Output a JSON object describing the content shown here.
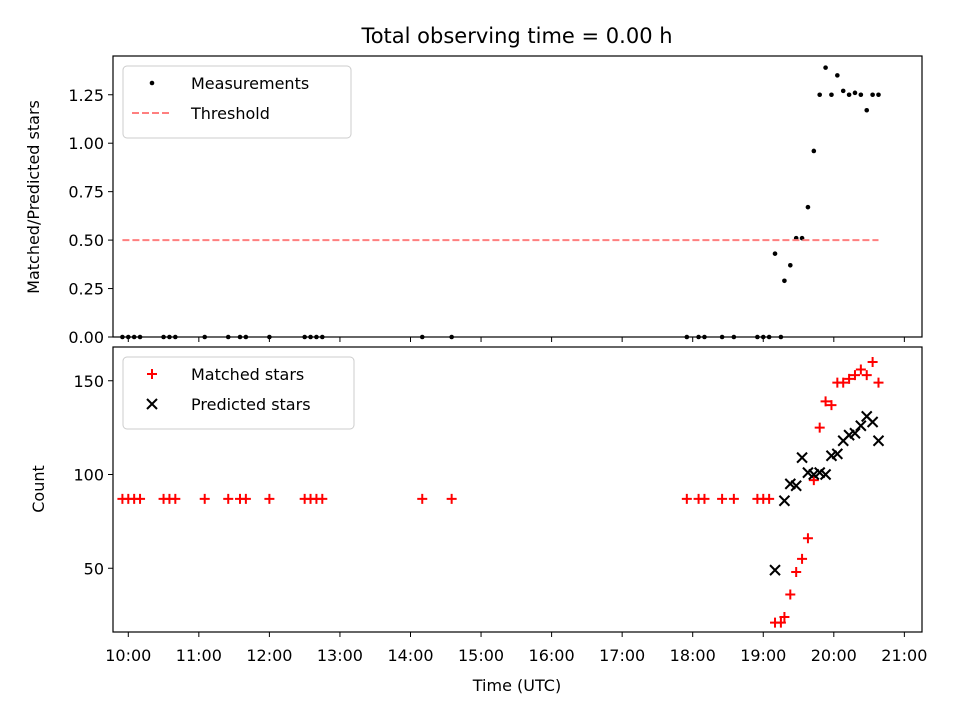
{
  "chart_data": [
    {
      "type": "scatter",
      "title": "Total observing time = 0.00 h",
      "ylabel": "Matched/Predicted stars",
      "xlim": [
        "09:47",
        "21:15"
      ],
      "ylim": [
        0,
        1.45
      ],
      "yticks": [
        0.0,
        0.25,
        0.5,
        0.75,
        1.0,
        1.25
      ],
      "ytick_labels": [
        "0.00",
        "0.25",
        "0.50",
        "0.75",
        "1.00",
        "1.25"
      ],
      "legend_position": "top-left",
      "series": [
        {
          "name": "Measurements",
          "marker": "dot",
          "color": "#000000",
          "points": [
            [
              "09:55",
              0.0
            ],
            [
              "10:00",
              0.0
            ],
            [
              "10:05",
              0.0
            ],
            [
              "10:10",
              0.0
            ],
            [
              "10:30",
              0.0
            ],
            [
              "10:35",
              0.0
            ],
            [
              "10:40",
              0.0
            ],
            [
              "11:05",
              0.0
            ],
            [
              "11:25",
              0.0
            ],
            [
              "11:35",
              0.0
            ],
            [
              "11:40",
              0.0
            ],
            [
              "12:00",
              0.0
            ],
            [
              "12:30",
              0.0
            ],
            [
              "12:35",
              0.0
            ],
            [
              "12:40",
              0.0
            ],
            [
              "12:45",
              0.0
            ],
            [
              "14:10",
              0.0
            ],
            [
              "14:35",
              0.0
            ],
            [
              "17:55",
              0.0
            ],
            [
              "18:05",
              0.0
            ],
            [
              "18:10",
              0.0
            ],
            [
              "18:25",
              0.0
            ],
            [
              "18:35",
              0.0
            ],
            [
              "18:55",
              0.0
            ],
            [
              "19:00",
              0.0
            ],
            [
              "19:05",
              0.0
            ],
            [
              "19:15",
              0.0
            ],
            [
              "19:10",
              0.43
            ],
            [
              "19:18",
              0.29
            ],
            [
              "19:23",
              0.37
            ],
            [
              "19:28",
              0.51
            ],
            [
              "19:33",
              0.51
            ],
            [
              "19:38",
              0.67
            ],
            [
              "19:43",
              0.96
            ],
            [
              "19:48",
              1.25
            ],
            [
              "19:53",
              1.39
            ],
            [
              "19:58",
              1.25
            ],
            [
              "20:03",
              1.35
            ],
            [
              "20:08",
              1.27
            ],
            [
              "20:13",
              1.25
            ],
            [
              "20:18",
              1.26
            ],
            [
              "20:23",
              1.25
            ],
            [
              "20:28",
              1.17
            ],
            [
              "20:33",
              1.25
            ],
            [
              "20:38",
              1.25
            ]
          ]
        },
        {
          "name": "Threshold",
          "marker": "dashed-line",
          "color": "#ff7f7f",
          "points": [
            [
              "09:55",
              0.5
            ],
            [
              "20:38",
              0.5
            ]
          ]
        }
      ]
    },
    {
      "type": "scatter",
      "ylabel": "Count",
      "xlabel": "Time (UTC)",
      "xlim": [
        "09:47",
        "21:15"
      ],
      "ylim": [
        16,
        168
      ],
      "yticks": [
        50,
        100,
        150
      ],
      "ytick_labels": [
        "50",
        "100",
        "150"
      ],
      "xticks": [
        "10:00",
        "11:00",
        "12:00",
        "13:00",
        "14:00",
        "15:00",
        "16:00",
        "17:00",
        "18:00",
        "19:00",
        "20:00",
        "21:00"
      ],
      "legend_position": "top-left",
      "series": [
        {
          "name": "Matched stars",
          "marker": "plus",
          "color": "#ff0000",
          "points": [
            [
              "09:55",
              87
            ],
            [
              "10:00",
              87
            ],
            [
              "10:05",
              87
            ],
            [
              "10:10",
              87
            ],
            [
              "10:30",
              87
            ],
            [
              "10:35",
              87
            ],
            [
              "10:40",
              87
            ],
            [
              "11:05",
              87
            ],
            [
              "11:25",
              87
            ],
            [
              "11:35",
              87
            ],
            [
              "11:40",
              87
            ],
            [
              "12:00",
              87
            ],
            [
              "12:30",
              87
            ],
            [
              "12:35",
              87
            ],
            [
              "12:40",
              87
            ],
            [
              "12:45",
              87
            ],
            [
              "14:10",
              87
            ],
            [
              "14:35",
              87
            ],
            [
              "17:55",
              87
            ],
            [
              "18:05",
              87
            ],
            [
              "18:10",
              87
            ],
            [
              "18:25",
              87
            ],
            [
              "18:35",
              87
            ],
            [
              "18:55",
              87
            ],
            [
              "19:00",
              87
            ],
            [
              "19:05",
              87
            ],
            [
              "19:10",
              21
            ],
            [
              "19:15",
              21
            ],
            [
              "19:18",
              24
            ],
            [
              "19:23",
              36
            ],
            [
              "19:28",
              48
            ],
            [
              "19:33",
              55
            ],
            [
              "19:38",
              66
            ],
            [
              "19:43",
              97
            ],
            [
              "19:48",
              125
            ],
            [
              "19:53",
              139
            ],
            [
              "19:58",
              137
            ],
            [
              "20:03",
              149
            ],
            [
              "20:08",
              149
            ],
            [
              "20:13",
              151
            ],
            [
              "20:18",
              153
            ],
            [
              "20:23",
              156
            ],
            [
              "20:28",
              153
            ],
            [
              "20:33",
              160
            ],
            [
              "20:38",
              149
            ]
          ]
        },
        {
          "name": "Predicted stars",
          "marker": "x",
          "color": "#000000",
          "points": [
            [
              "19:10",
              49
            ],
            [
              "19:18",
              86
            ],
            [
              "19:23",
              95
            ],
            [
              "19:28",
              94
            ],
            [
              "19:33",
              109
            ],
            [
              "19:38",
              101
            ],
            [
              "19:43",
              100
            ],
            [
              "19:48",
              101
            ],
            [
              "19:53",
              100
            ],
            [
              "19:58",
              110
            ],
            [
              "20:03",
              111
            ],
            [
              "20:08",
              118
            ],
            [
              "20:13",
              121
            ],
            [
              "20:18",
              122
            ],
            [
              "20:23",
              126
            ],
            [
              "20:28",
              131
            ],
            [
              "20:33",
              128
            ],
            [
              "20:38",
              118
            ]
          ]
        }
      ]
    }
  ]
}
